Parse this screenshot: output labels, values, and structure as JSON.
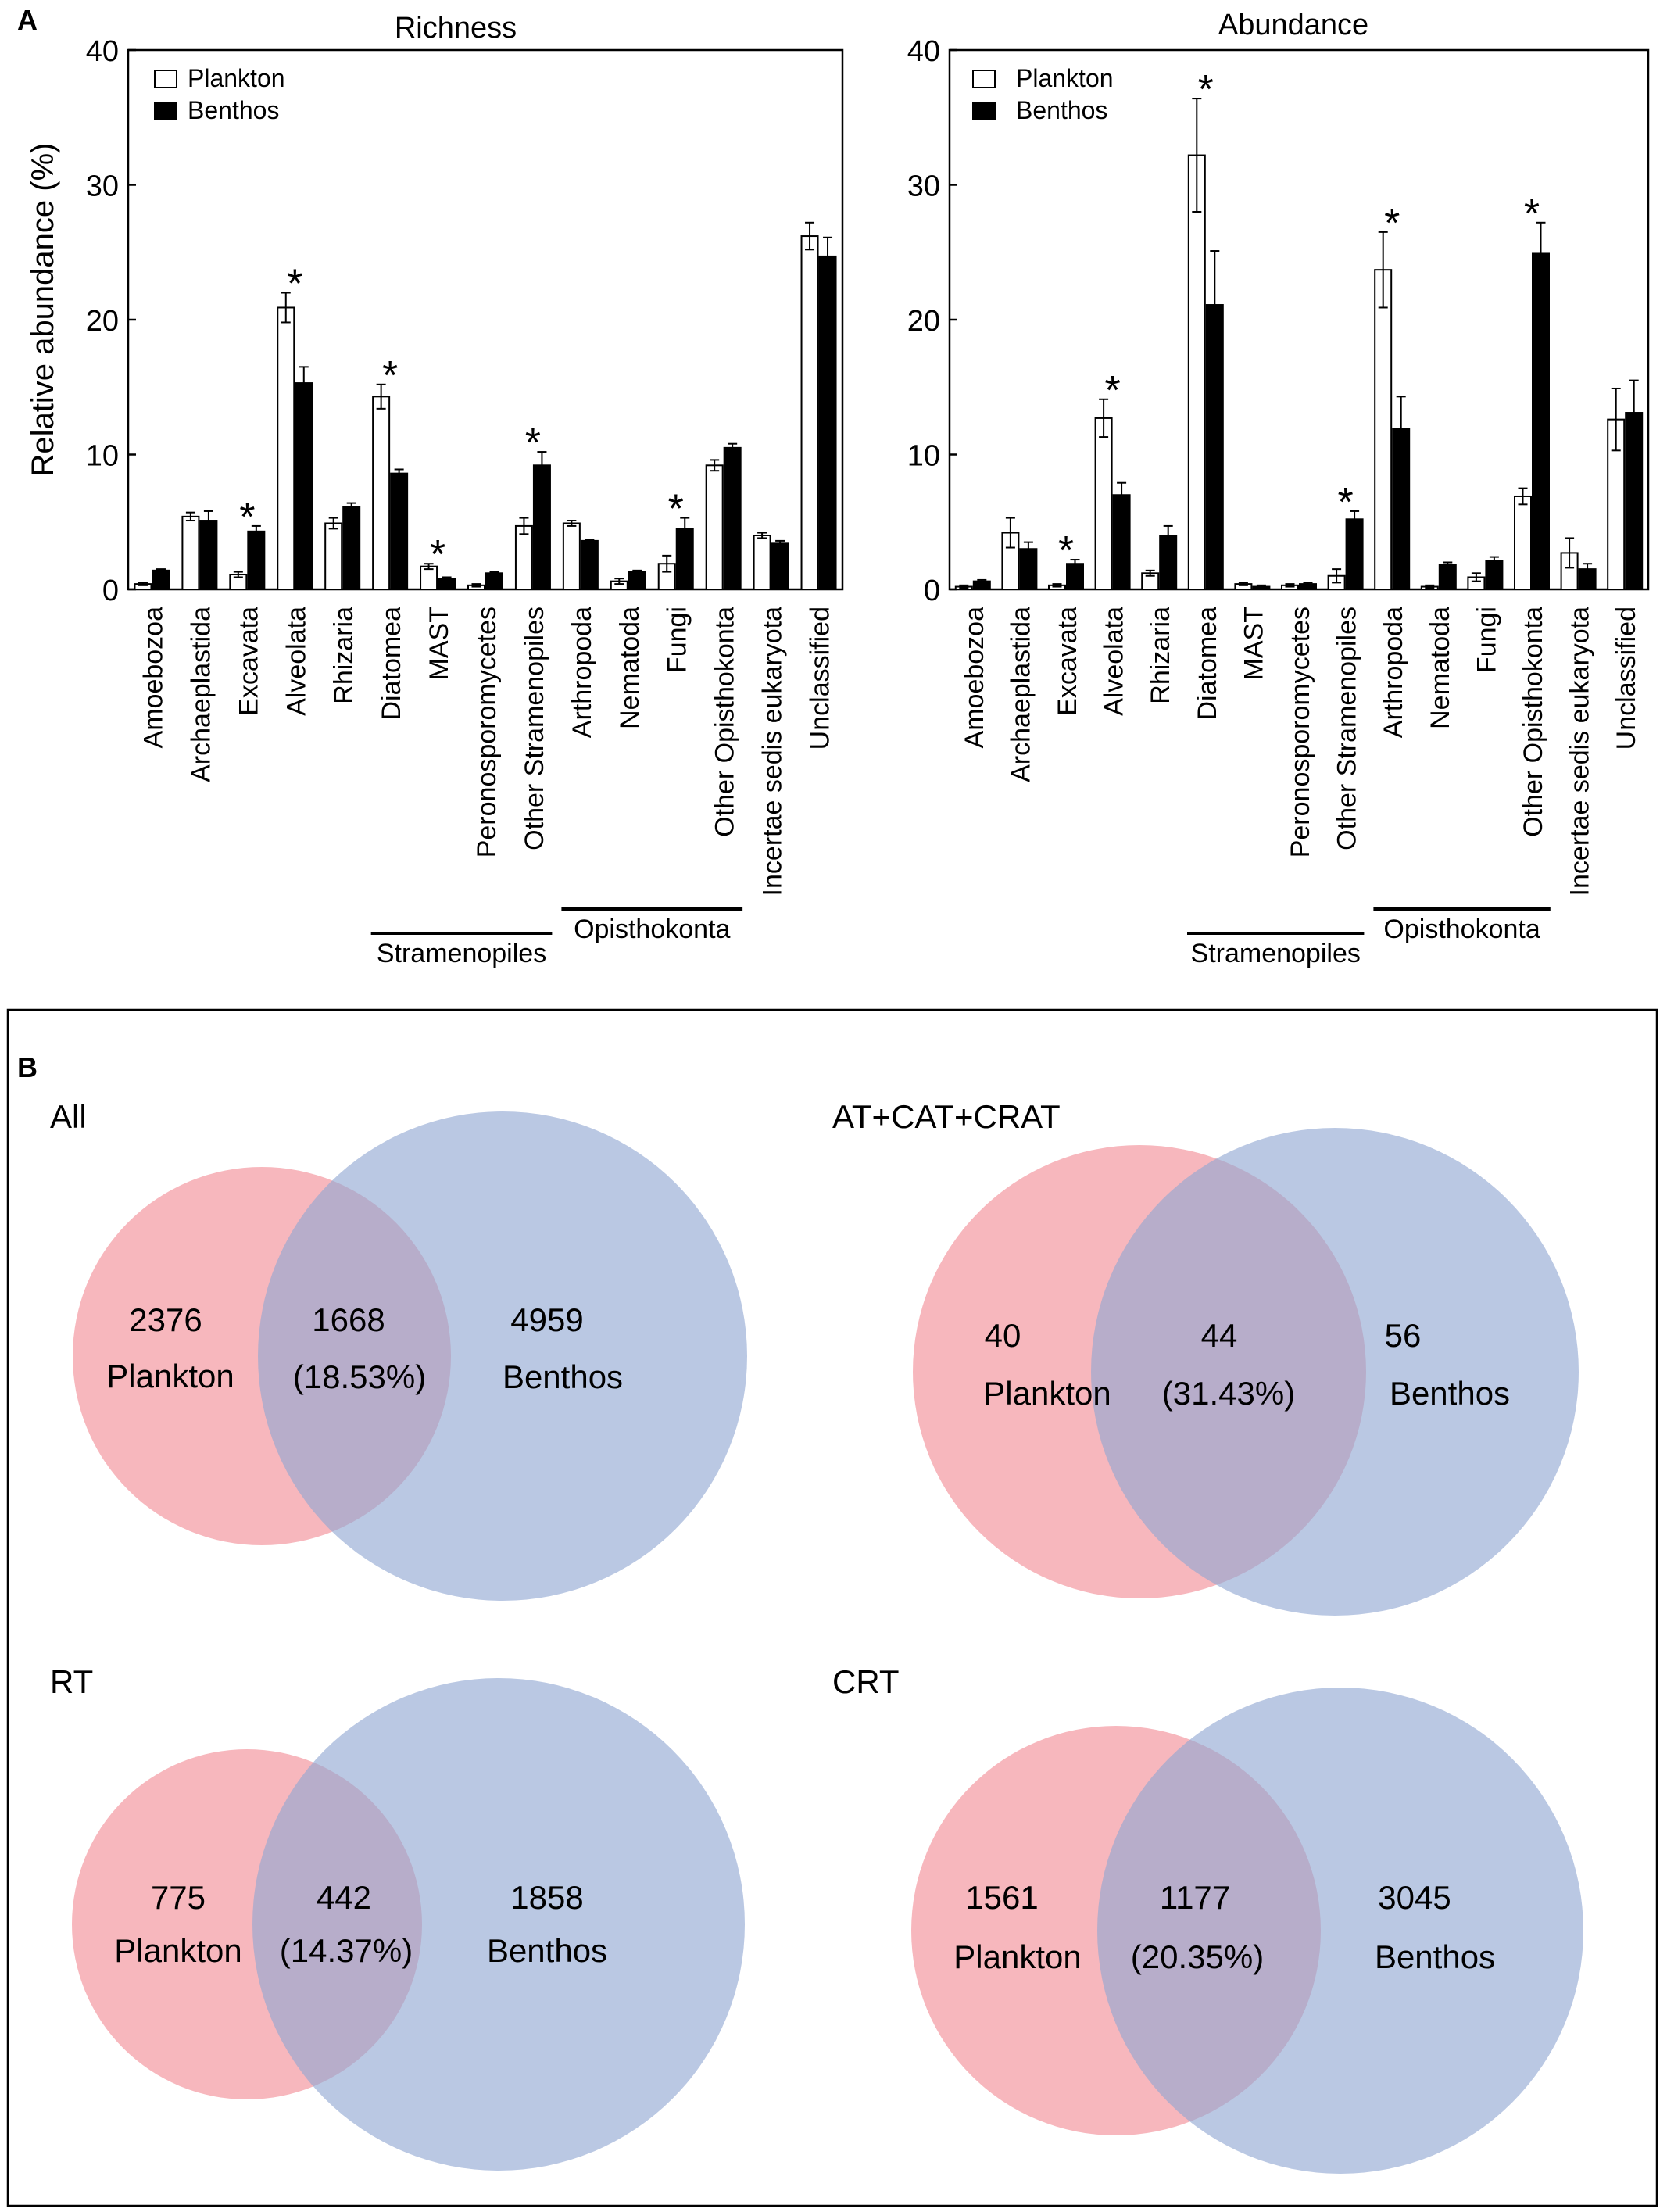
{
  "panel_a": {
    "label": "A",
    "ylabel": "Relative abundance (%)",
    "categories": [
      "Amoebozoa",
      "Archaeplastida",
      "Excavata",
      "Alveolata",
      "Rhizaria",
      "Diatomea",
      "MAST",
      "Peronosporomycetes",
      "Other Stramenopiles",
      "Arthropoda",
      "Nematoda",
      "Fungi",
      "Other Opisthokonta",
      "Incertae sedis eukaryota",
      "Unclassified"
    ],
    "groups": [
      {
        "name": "Stramenopiles",
        "from": 5,
        "to": 8
      },
      {
        "name": "Opisthokonta",
        "from": 9,
        "to": 12
      }
    ]
  },
  "chart_data": [
    {
      "type": "bar",
      "title": "Richness",
      "xlabel": "",
      "ylabel": "Relative abundance (%)",
      "ylim": [
        0,
        40
      ],
      "yticks": [
        0,
        10,
        20,
        30,
        40
      ],
      "categories": [
        "Amoebozoa",
        "Archaeplastida",
        "Excavata",
        "Alveolata",
        "Rhizaria",
        "Diatomea",
        "MAST",
        "Peronosporomycetes",
        "Other Stramenopiles",
        "Arthropoda",
        "Nematoda",
        "Fungi",
        "Other Opisthokonta",
        "Incertae sedis eukaryota",
        "Unclassified"
      ],
      "series": [
        {
          "name": "Plankton",
          "color": "#ffffff",
          "values": [
            0.4,
            5.4,
            1.1,
            20.9,
            4.9,
            14.3,
            1.7,
            0.3,
            4.7,
            4.9,
            0.6,
            1.9,
            9.2,
            4.0,
            26.2
          ],
          "errors": [
            0.1,
            0.3,
            0.2,
            1.1,
            0.4,
            0.9,
            0.2,
            0.1,
            0.6,
            0.2,
            0.2,
            0.6,
            0.4,
            0.2,
            1.0
          ]
        },
        {
          "name": "Benthos",
          "color": "#000000",
          "values": [
            1.4,
            5.1,
            4.3,
            15.3,
            6.1,
            8.6,
            0.8,
            1.2,
            9.2,
            3.6,
            1.3,
            4.5,
            10.5,
            3.4,
            24.7
          ],
          "errors": [
            0.1,
            0.7,
            0.4,
            1.2,
            0.3,
            0.3,
            0.1,
            0.1,
            1.0,
            0.1,
            0.1,
            0.8,
            0.3,
            0.2,
            1.4
          ]
        }
      ],
      "significant": [
        2,
        3,
        5,
        6,
        8,
        11
      ],
      "significance_marker": "*",
      "legend": "top-left"
    },
    {
      "type": "bar",
      "title": "Abundance",
      "xlabel": "",
      "ylabel": "",
      "ylim": [
        0,
        40
      ],
      "yticks": [
        0,
        10,
        20,
        30,
        40
      ],
      "categories": [
        "Amoebozoa",
        "Archaeplastida",
        "Excavata",
        "Alveolata",
        "Rhizaria",
        "Diatomea",
        "MAST",
        "Peronosporomycetes",
        "Other Stramenopiles",
        "Arthropoda",
        "Nematoda",
        "Fungi",
        "Other Opisthokonta",
        "Incertae sedis eukaryota",
        "Unclassified"
      ],
      "series": [
        {
          "name": "Plankton",
          "color": "#ffffff",
          "values": [
            0.2,
            4.2,
            0.3,
            12.7,
            1.2,
            32.2,
            0.4,
            0.3,
            1.0,
            23.7,
            0.2,
            0.9,
            6.9,
            2.7,
            12.6
          ],
          "errors": [
            0.1,
            1.1,
            0.1,
            1.4,
            0.2,
            4.2,
            0.1,
            0.1,
            0.5,
            2.8,
            0.1,
            0.3,
            0.6,
            1.1,
            2.3
          ]
        },
        {
          "name": "Benthos",
          "color": "#000000",
          "values": [
            0.6,
            3.0,
            1.9,
            7.0,
            4.0,
            21.1,
            0.2,
            0.4,
            5.2,
            11.9,
            1.8,
            2.1,
            24.9,
            1.5,
            13.1
          ],
          "errors": [
            0.1,
            0.5,
            0.3,
            0.9,
            0.7,
            4.0,
            0.1,
            0.1,
            0.6,
            2.4,
            0.2,
            0.3,
            2.3,
            0.4,
            2.4
          ]
        }
      ],
      "significant": [
        2,
        3,
        5,
        8,
        9,
        12
      ],
      "significance_marker": "*",
      "legend": "top-left"
    }
  ],
  "panel_b": {
    "label": "B",
    "venns": [
      {
        "title": "All",
        "left_count": "2376",
        "left_label": "Plankton",
        "shared_count": "1668",
        "shared_pct": "(18.53%)",
        "right_count": "4959",
        "right_label": "Benthos"
      },
      {
        "title": "AT+CAT+CRAT",
        "left_count": "40",
        "left_label": "Plankton",
        "shared_count": "44",
        "shared_pct": "(31.43%)",
        "right_count": "56",
        "right_label": "Benthos"
      },
      {
        "title": "RT",
        "left_count": "775",
        "left_label": "Plankton",
        "shared_count": "442",
        "shared_pct": "(14.37%)",
        "right_count": "1858",
        "right_label": "Benthos"
      },
      {
        "title": "CRT",
        "left_count": "1561",
        "left_label": "Plankton",
        "shared_count": "1177",
        "shared_pct": "(20.35%)",
        "right_count": "3045",
        "right_label": "Benthos"
      }
    ],
    "colors": {
      "plankton": "#f28b95",
      "benthos": "#90a7d2"
    }
  }
}
